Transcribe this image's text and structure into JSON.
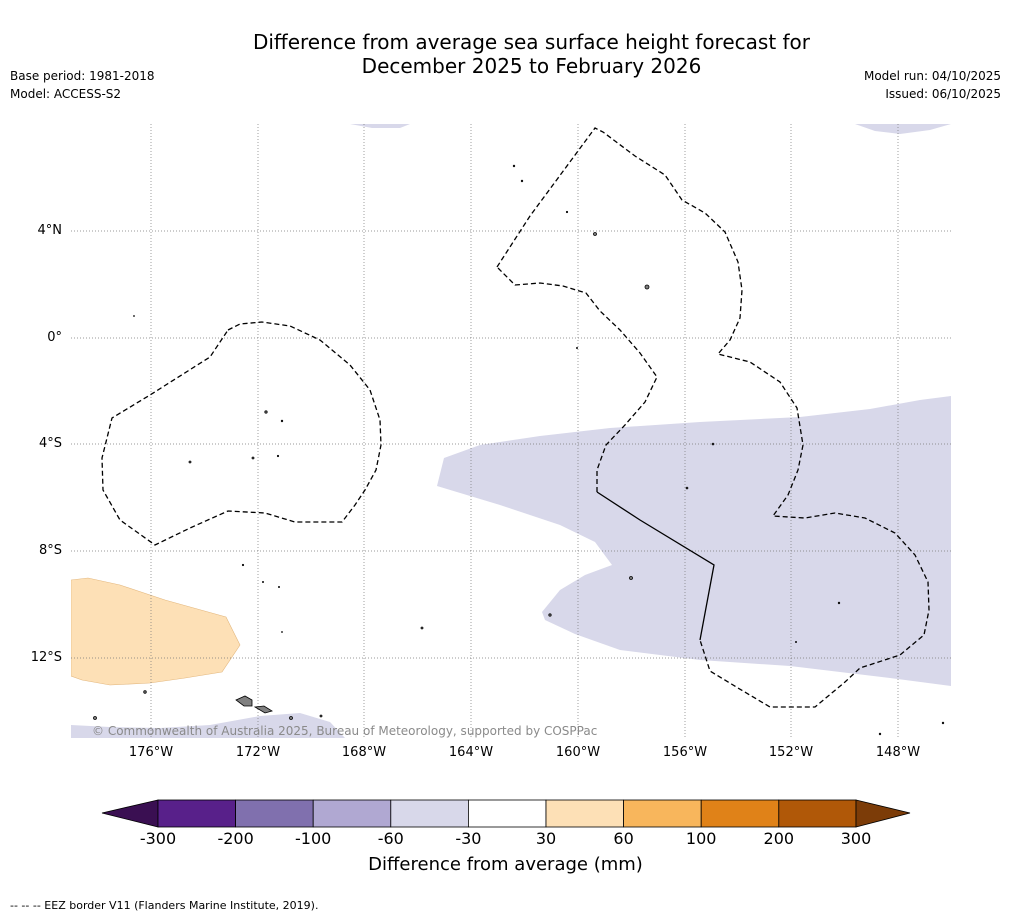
{
  "header": {
    "title_line1": "Difference from average sea surface height forecast for",
    "title_line2": "December 2025 to February 2026",
    "base_period": "Base period: 1981-2018",
    "model": "Model: ACCESS-S2",
    "model_run": "Model run: 04/10/2025",
    "issued": "Issued: 06/10/2025"
  },
  "map": {
    "lat_labels": [
      "4°N",
      "0°",
      "4°S",
      "8°S",
      "12°S"
    ],
    "lon_labels": [
      "176°W",
      "172°W",
      "168°W",
      "164°W",
      "160°W",
      "156°W",
      "152°W",
      "148°W"
    ],
    "copyright": "© Commonwealth of Australia 2025, Bureau of Meteorology, supported by COSPPac",
    "colors": {
      "light_purple": "#d8d8ea",
      "light_orange": "#fde0b6",
      "eez_line": "#000000",
      "land": "#808080"
    }
  },
  "colorbar": {
    "title": "Difference from average (mm)",
    "tick_labels": [
      "-300",
      "-200",
      "-100",
      "-60",
      "-30",
      "30",
      "60",
      "100",
      "200",
      "300"
    ],
    "colors": [
      "#3a0f52",
      "#58208a",
      "#8070ae",
      "#b0a8d2",
      "#d8d8ea",
      "#ffffff",
      "#fde0b6",
      "#f8b65c",
      "#e08218",
      "#b05808",
      "#7c3c08"
    ]
  },
  "footer": {
    "eez_note": "--  --  -- EEZ border V11 (Flanders Marine Institute, 2019)."
  }
}
